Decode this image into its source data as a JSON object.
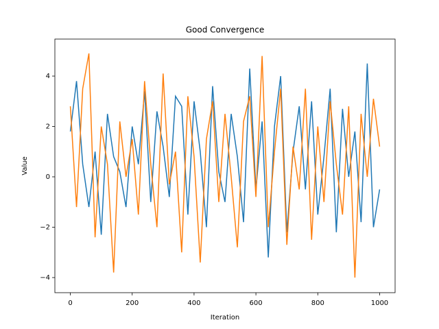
{
  "chart_data": {
    "type": "line",
    "title": "Good Convergence",
    "xlabel": "Iteration",
    "ylabel": "Value",
    "x": [
      0,
      20,
      40,
      60,
      80,
      100,
      120,
      140,
      160,
      180,
      200,
      220,
      240,
      260,
      280,
      300,
      320,
      340,
      360,
      380,
      400,
      420,
      440,
      460,
      480,
      500,
      520,
      540,
      560,
      580,
      600,
      620,
      640,
      660,
      680,
      700,
      720,
      740,
      760,
      780,
      800,
      820,
      840,
      860,
      880,
      900,
      920,
      940,
      960,
      980,
      1000
    ],
    "series": [
      {
        "color": "#1f77b4",
        "values": [
          1.8,
          3.8,
          0.5,
          -1.2,
          1.0,
          -2.3,
          2.5,
          0.8,
          0.2,
          -1.2,
          2.0,
          0.5,
          3.4,
          -1.0,
          2.6,
          1.2,
          -0.8,
          3.2,
          2.8,
          -1.5,
          3.0,
          1.0,
          -2.0,
          3.6,
          0.2,
          -1.0,
          2.5,
          0.8,
          -1.8,
          4.3,
          -0.5,
          2.2,
          -3.2,
          2.0,
          4.0,
          -2.2,
          1.0,
          2.8,
          -0.5,
          3.0,
          -1.5,
          0.8,
          3.5,
          -2.2,
          2.7,
          0.0,
          1.8,
          -1.8,
          4.5,
          -2.0,
          -0.5
        ]
      },
      {
        "color": "#ff7f0e",
        "values": [
          2.8,
          -1.2,
          3.5,
          4.9,
          -2.4,
          2.0,
          0.5,
          -3.8,
          2.2,
          0.0,
          1.5,
          -1.5,
          3.8,
          0.5,
          -2.0,
          4.1,
          -0.3,
          1.0,
          -3.0,
          3.2,
          0.8,
          -3.4,
          1.5,
          3.0,
          -1.0,
          2.5,
          0.0,
          -2.8,
          2.2,
          3.2,
          -0.8,
          4.8,
          -2.0,
          1.0,
          3.5,
          -2.7,
          1.2,
          -0.5,
          3.5,
          -2.5,
          2.0,
          -1.0,
          3.0,
          0.5,
          -1.5,
          2.8,
          -4.0,
          2.5,
          0.0,
          3.1,
          1.2
        ]
      }
    ],
    "xlim": [
      -50,
      1050
    ],
    "ylim": [
      -4.6,
      5.47
    ],
    "xticks": [
      0,
      200,
      400,
      600,
      800,
      1000
    ],
    "yticks": [
      {
        "value": -4,
        "label": "−4"
      },
      {
        "value": -2,
        "label": "−2"
      },
      0,
      2,
      4
    ],
    "grid": false
  }
}
